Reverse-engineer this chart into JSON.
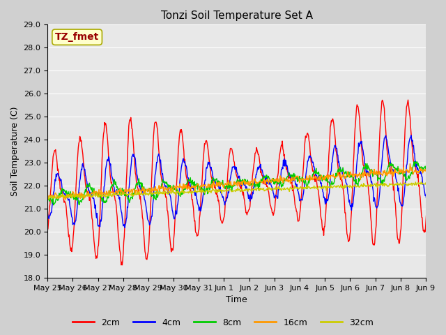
{
  "title": "Tonzi Soil Temperature Set A",
  "xlabel": "Time",
  "ylabel": "Soil Temperature (C)",
  "ylim": [
    18.0,
    29.0
  ],
  "yticks": [
    18.0,
    19.0,
    20.0,
    21.0,
    22.0,
    23.0,
    24.0,
    25.0,
    26.0,
    27.0,
    28.0,
    29.0
  ],
  "xtick_labels": [
    "May 25",
    "May 26",
    "May 27",
    "May 28",
    "May 29",
    "May 30",
    "May 31",
    "Jun 1",
    "Jun 2",
    "Jun 3",
    "Jun 4",
    "Jun 5",
    "Jun 6",
    "Jun 7",
    "Jun 8",
    "Jun 9"
  ],
  "label_box_text": "TZ_fmet",
  "label_box_bg": "#ffffcc",
  "label_box_fg": "#990000",
  "legend_entries": [
    "2cm",
    "4cm",
    "8cm",
    "16cm",
    "32cm"
  ],
  "line_colors": [
    "#ff0000",
    "#0000ff",
    "#00cc00",
    "#ff9900",
    "#cccc00"
  ],
  "fig_bg": "#d0d0d0",
  "plot_bg": "#e8e8e8",
  "title_fontsize": 11,
  "axis_fontsize": 9,
  "tick_fontsize": 8,
  "legend_fontsize": 9,
  "figwidth": 6.4,
  "figheight": 4.8,
  "dpi": 100
}
